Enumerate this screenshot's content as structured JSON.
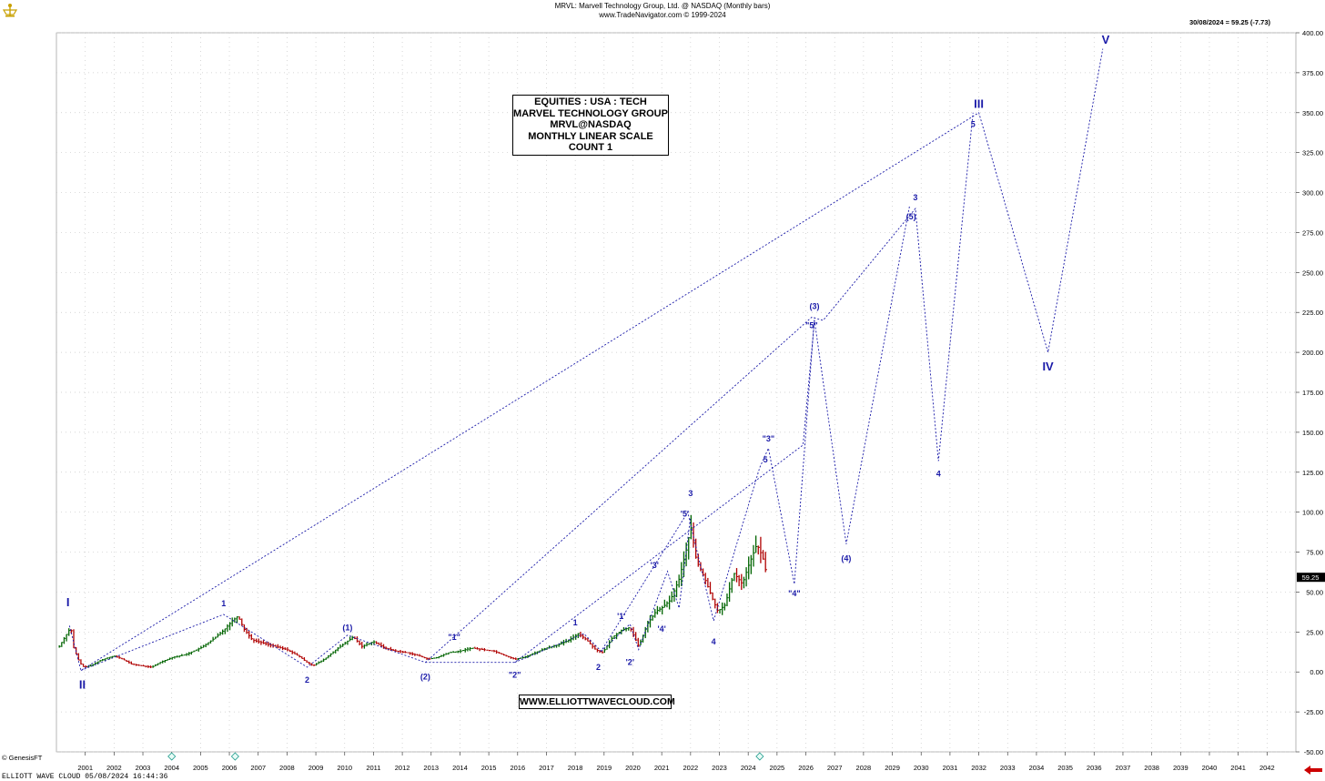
{
  "header": {
    "title": "MRVL:  Marvell Technology Group, Ltd. @ NASDAQ  (Monthly bars)",
    "subtitle": "www.TradeNavigator.com © 1999-2024"
  },
  "last_price_label": "30/08/2024 = 59.25 (-7.73)",
  "price_tag": "59.25",
  "info_box": [
    "EQUITIES : USA : TECH",
    "MARVEL TECHNOLOGY GROUP",
    "MRVL@NASDAQ",
    "MONTHLY LINEAR SCALE",
    "COUNT 1"
  ],
  "url_box": "WWW.ELLIOTTWAVECLOUD.COM",
  "footer": "ELLIOTT WAVE CLOUD  05/08/2024 16:44:36",
  "copyright": "© GenesisFT",
  "colors": {
    "wave": "#1a1aa8",
    "up_bar": "#006400",
    "down_bar": "#b00000",
    "grid": "#c8c8c8",
    "arrow": "#cc0000"
  },
  "chart_data": {
    "type": "line",
    "title": "MRVL:  Marvell Technology Group, Ltd. @ NASDAQ  (Monthly bars)",
    "y_ticks": [
      400,
      375,
      350,
      325,
      300,
      275,
      250,
      225,
      200,
      175,
      150,
      125,
      100,
      75,
      50,
      25,
      0,
      -25,
      -50
    ],
    "y_tick_labels": [
      "400.00",
      "375.00",
      "350.00",
      "325.00",
      "300.00",
      "275.00",
      "250.00",
      "225.00",
      "200.00",
      "175.00",
      "150.00",
      "125.00",
      "100.00",
      "75.00",
      "50.00",
      "25.00",
      "0.00",
      "-25.00",
      "-50.00"
    ],
    "x_ticks": [
      2001,
      2002,
      2003,
      2004,
      2005,
      2006,
      2007,
      2008,
      2009,
      2010,
      2011,
      2012,
      2013,
      2014,
      2015,
      2016,
      2017,
      2018,
      2019,
      2020,
      2021,
      2022,
      2023,
      2024,
      2025,
      2026,
      2027,
      2028,
      2029,
      2030,
      2031,
      2032,
      2033,
      2034,
      2035,
      2036,
      2037,
      2038,
      2039,
      2040,
      2041,
      2042
    ],
    "ylim": [
      -50,
      400
    ],
    "grid": true,
    "price_series": [
      [
        2000.1,
        16
      ],
      [
        2000.3,
        22
      ],
      [
        2000.5,
        28
      ],
      [
        2000.6,
        15
      ],
      [
        2000.8,
        6
      ],
      [
        2000.95,
        3
      ],
      [
        2001.2,
        4
      ],
      [
        2001.5,
        7
      ],
      [
        2001.8,
        9
      ],
      [
        2002.0,
        10
      ],
      [
        2002.3,
        8
      ],
      [
        2002.6,
        5
      ],
      [
        2002.9,
        4
      ],
      [
        2003.3,
        3
      ],
      [
        2003.6,
        6
      ],
      [
        2004.0,
        9
      ],
      [
        2004.5,
        11
      ],
      [
        2005.0,
        15
      ],
      [
        2005.4,
        20
      ],
      [
        2005.8,
        26
      ],
      [
        2006.1,
        32
      ],
      [
        2006.3,
        35
      ],
      [
        2006.5,
        27
      ],
      [
        2006.8,
        20
      ],
      [
        2007.2,
        18
      ],
      [
        2007.6,
        16
      ],
      [
        2008.0,
        14
      ],
      [
        2008.4,
        10
      ],
      [
        2008.7,
        6
      ],
      [
        2008.9,
        4
      ],
      [
        2009.3,
        8
      ],
      [
        2009.7,
        14
      ],
      [
        2010.0,
        18
      ],
      [
        2010.3,
        22
      ],
      [
        2010.6,
        16
      ],
      [
        2011.0,
        19
      ],
      [
        2011.4,
        15
      ],
      [
        2011.8,
        13
      ],
      [
        2012.2,
        12
      ],
      [
        2012.6,
        10
      ],
      [
        2012.9,
        8
      ],
      [
        2013.2,
        9
      ],
      [
        2013.6,
        12
      ],
      [
        2014.0,
        13
      ],
      [
        2014.4,
        15
      ],
      [
        2014.8,
        14
      ],
      [
        2015.2,
        13
      ],
      [
        2015.6,
        10
      ],
      [
        2015.9,
        8
      ],
      [
        2016.2,
        9
      ],
      [
        2016.6,
        12
      ],
      [
        2017.0,
        15
      ],
      [
        2017.4,
        17
      ],
      [
        2017.8,
        20
      ],
      [
        2018.1,
        24
      ],
      [
        2018.4,
        20
      ],
      [
        2018.7,
        14
      ],
      [
        2018.95,
        12
      ],
      [
        2019.3,
        22
      ],
      [
        2019.6,
        26
      ],
      [
        2019.9,
        28
      ],
      [
        2020.1,
        20
      ],
      [
        2020.2,
        16
      ],
      [
        2020.5,
        30
      ],
      [
        2020.8,
        38
      ],
      [
        2021.0,
        40
      ],
      [
        2021.3,
        45
      ],
      [
        2021.6,
        58
      ],
      [
        2021.9,
        80
      ],
      [
        2022.0,
        92
      ],
      [
        2022.2,
        70
      ],
      [
        2022.5,
        58
      ],
      [
        2022.8,
        44
      ],
      [
        2022.95,
        38
      ],
      [
        2023.2,
        42
      ],
      [
        2023.5,
        62
      ],
      [
        2023.8,
        55
      ],
      [
        2024.0,
        66
      ],
      [
        2024.3,
        80
      ],
      [
        2024.5,
        72
      ],
      [
        2024.66,
        59.25
      ]
    ],
    "wave_lines": [
      {
        "name": "primary",
        "points": [
          [
            2000.45,
            29
          ],
          [
            2000.85,
            1
          ],
          [
            2032.0,
            350
          ],
          [
            2034.4,
            200
          ],
          [
            2036.3,
            390
          ]
        ]
      },
      {
        "name": "intermediate",
        "points": [
          [
            2000.85,
            1
          ],
          [
            2005.8,
            36
          ],
          [
            2008.7,
            3
          ],
          [
            2010.1,
            23
          ],
          [
            2012.8,
            6
          ],
          [
            2026.2,
            222
          ],
          [
            2026.6,
            220
          ],
          [
            2029.8,
            290
          ],
          [
            2030.6,
            132
          ],
          [
            2031.8,
            350
          ]
        ]
      },
      {
        "name": "minor",
        "points": [
          [
            2012.8,
            6
          ],
          [
            2015.9,
            6
          ],
          [
            2025.9,
            142
          ],
          [
            2026.3,
            220
          ],
          [
            2027.4,
            80
          ],
          [
            2029.6,
            292
          ]
        ]
      },
      {
        "name": "minute-a",
        "points": [
          [
            2015.9,
            6
          ],
          [
            2018.3,
            24
          ],
          [
            2018.9,
            13
          ],
          [
            2021.9,
            100
          ],
          [
            2022.8,
            32
          ],
          [
            2024.4,
            128
          ],
          [
            2024.7,
            140
          ],
          [
            2025.6,
            55
          ],
          [
            2026.3,
            222
          ]
        ]
      },
      {
        "name": "minute-b",
        "points": [
          [
            2018.9,
            13
          ],
          [
            2019.9,
            30
          ],
          [
            2020.2,
            14
          ],
          [
            2021.2,
            63
          ],
          [
            2021.6,
            40
          ],
          [
            2022.0,
            97
          ]
        ]
      }
    ],
    "wave_labels": [
      {
        "text": "I",
        "x": 2000.4,
        "y": 40,
        "size": "big"
      },
      {
        "text": "II",
        "x": 2000.9,
        "y": -3,
        "size": "big",
        "below": true
      },
      {
        "text": "III",
        "x": 2032.0,
        "y": 352,
        "size": "big"
      },
      {
        "text": "IV",
        "x": 2034.4,
        "y": 196,
        "size": "big",
        "below": true
      },
      {
        "text": "V",
        "x": 2036.4,
        "y": 392,
        "size": "big"
      },
      {
        "text": "1",
        "x": 2005.8,
        "y": 40
      },
      {
        "text": "2",
        "x": 2008.7,
        "y": -1,
        "below": true
      },
      {
        "text": "(1)",
        "x": 2010.1,
        "y": 25
      },
      {
        "text": "(2)",
        "x": 2012.8,
        "y": 1,
        "below": true
      },
      {
        "text": "\"1\"",
        "x": 2013.8,
        "y": 19
      },
      {
        "text": "\"2\"",
        "x": 2015.9,
        "y": 2,
        "below": true
      },
      {
        "text": "1",
        "x": 2018.0,
        "y": 28
      },
      {
        "text": "2",
        "x": 2018.8,
        "y": 7,
        "below": true
      },
      {
        "text": "'1'",
        "x": 2019.6,
        "y": 32
      },
      {
        "text": "'2'",
        "x": 2019.9,
        "y": 10,
        "below": true
      },
      {
        "text": "'3'",
        "x": 2020.75,
        "y": 64
      },
      {
        "text": "'4'",
        "x": 2021.0,
        "y": 31,
        "below": true
      },
      {
        "text": "'5'",
        "x": 2021.8,
        "y": 96
      },
      {
        "text": "3",
        "x": 2022.0,
        "y": 109
      },
      {
        "text": "4",
        "x": 2022.8,
        "y": 23,
        "below": true
      },
      {
        "text": "5",
        "x": 2024.6,
        "y": 130
      },
      {
        "text": "\"3\"",
        "x": 2024.7,
        "y": 143
      },
      {
        "text": "\"4\"",
        "x": 2025.6,
        "y": 53,
        "below": true
      },
      {
        "text": "(3)",
        "x": 2026.3,
        "y": 226
      },
      {
        "text": "\"5\"",
        "x": 2026.2,
        "y": 214
      },
      {
        "text": "(4)",
        "x": 2027.4,
        "y": 75,
        "below": true
      },
      {
        "text": "3",
        "x": 2029.8,
        "y": 294
      },
      {
        "text": "(5)",
        "x": 2029.65,
        "y": 282
      },
      {
        "text": "4",
        "x": 2030.6,
        "y": 128,
        "below": true
      },
      {
        "text": "5",
        "x": 2031.8,
        "y": 340
      }
    ]
  }
}
